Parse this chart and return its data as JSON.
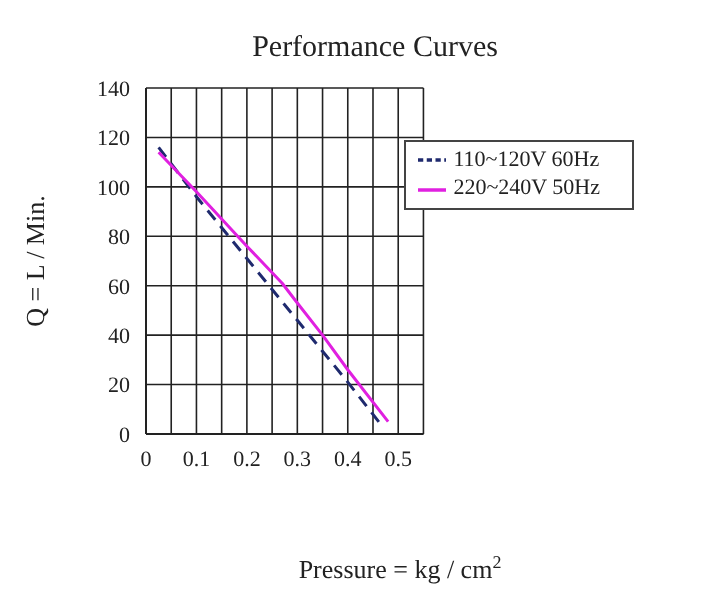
{
  "chart_data": {
    "type": "line",
    "title": "Performance Curves",
    "xlabel": "Pressure = kg / cm$^{2}$",
    "ylabel": "Q = L / Min.",
    "xlim": [
      0,
      0.55
    ],
    "xticks": [
      0,
      {
        "value": 0.05,
        "label": null
      },
      0.1,
      {
        "value": 0.15,
        "label": null
      },
      0.2,
      {
        "value": 0.25,
        "label": null
      },
      0.3,
      {
        "value": 0.35,
        "label": null
      },
      0.4,
      {
        "value": 0.45,
        "label": null
      },
      0.5
    ],
    "ylim": [
      0,
      140
    ],
    "yticks": [
      0,
      20,
      40,
      60,
      80,
      100,
      120,
      140
    ],
    "grid": true,
    "legend": "top right",
    "marker": "none",
    "series": [
      {
        "name": "110~120V 60Hz",
        "color": "#1f2a6e",
        "line_style": "dashed",
        "x": [
          0.025,
          0.1,
          0.2,
          0.3,
          0.4,
          0.465
        ],
        "values": [
          116,
          96,
          71,
          46,
          21,
          4
        ]
      },
      {
        "name": "220~240V 50Hz",
        "color": "#e020e0",
        "line_style": "solid",
        "x": [
          0.025,
          0.1,
          0.2,
          0.27,
          0.3,
          0.35,
          0.4,
          0.48
        ],
        "values": [
          114,
          98,
          76,
          61,
          53,
          40,
          26,
          5
        ]
      }
    ]
  }
}
